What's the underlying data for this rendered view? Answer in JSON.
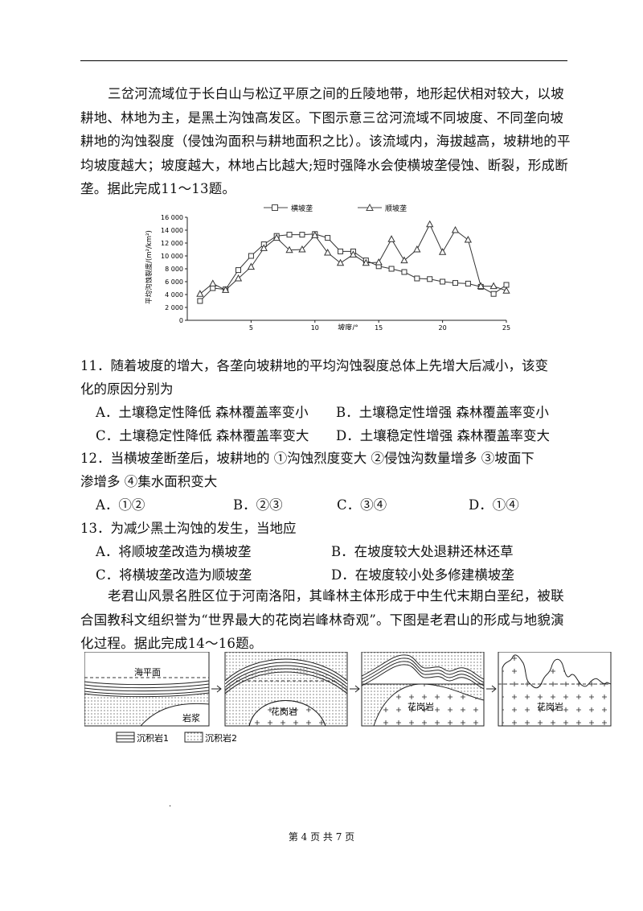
{
  "intro1": "三岔河流域位于长白山与松辽平原之间的丘陵地带，地形起伏相对较大，以坡耕地、林地为主，是黑土沟蚀高发区。下图示意三岔河流域不同坡度、不同垄向坡耕地的沟蚀裂度（侵蚀沟面积与耕地面积之比）。该流域内，海拔越高，坡耕地的平均坡度越大；坡度越大，林地占比越大;短时强降水会使横坡垄侵蚀、断裂，形成断垄。据此完成11～13题。",
  "chart_data": {
    "type": "line",
    "xlabel": "坡度/°",
    "ylabel": "平均沟蚀裂度/(m²/km²)",
    "xlim": [
      0,
      25
    ],
    "ylim": [
      0,
      16000
    ],
    "xticks": [
      "5",
      "10",
      "15",
      "20",
      "25"
    ],
    "yticks": [
      "0",
      "2 000",
      "4 000",
      "6 000",
      "8 000",
      "10 000",
      "12 000",
      "14 000",
      "16 000"
    ],
    "legend_position": "top",
    "series": [
      {
        "name": "横坡垄",
        "marker": "square",
        "x": [
          1,
          2,
          3,
          4,
          5,
          6,
          7,
          8,
          9,
          10,
          11,
          12,
          13,
          14,
          15,
          16,
          17,
          18,
          19,
          20,
          21,
          22,
          23,
          24,
          25
        ],
        "values": [
          3000,
          5000,
          4800,
          7800,
          10000,
          11800,
          13100,
          13300,
          13300,
          13400,
          12800,
          10700,
          10700,
          9300,
          8400,
          8000,
          7500,
          6500,
          6400,
          6000,
          5800,
          5700,
          5200,
          4100,
          5500
        ]
      },
      {
        "name": "顺坡垄",
        "marker": "triangle",
        "x": [
          1,
          2,
          3,
          4,
          5,
          6,
          7,
          8,
          9,
          10,
          11,
          12,
          13,
          14,
          15,
          16,
          17,
          18,
          19,
          20,
          21,
          22,
          23,
          24,
          25
        ],
        "values": [
          4100,
          5700,
          4700,
          6500,
          8300,
          11200,
          12800,
          10900,
          11000,
          13200,
          10500,
          8900,
          10200,
          8900,
          9000,
          12600,
          9300,
          11000,
          14900,
          10600,
          14000,
          12500,
          5300,
          5300,
          4600
        ]
      }
    ]
  },
  "q11": {
    "stem1": "11．随着坡度的增大，各垄向坡耕地的平均沟蚀裂度总体上先增大后减小，该变",
    "stem2": "化的原因分别为",
    "A": "A．土壤稳定性降低  森林覆盖率变小",
    "B": "B．土壤稳定性增强  森林覆盖率变小",
    "C": "C．土壤稳定性降低  森林覆盖率变大",
    "D": "D．土壤稳定性增强  森林覆盖率变大"
  },
  "q12": {
    "stem1": "12．当横坡垄断垄后，坡耕地的  ①沟蚀烈度变大 ②侵蚀沟数量增多 ③坡面下",
    "stem2": "渗增多 ④集水面积变大",
    "A": "A．①②",
    "B": "B．②③",
    "C": "C．③④",
    "D": "D．①④"
  },
  "q13": {
    "stem": "13．为减少黑土沟蚀的发生，当地应",
    "A": "A．将顺坡垄改造为横坡垄",
    "B": "B．在坡度较大处退耕还林还草",
    "C": "C．将横坡垄改造为顺坡垄",
    "D": "D．在坡度较小处多修建横坡垄"
  },
  "intro2": "老君山风景名胜区位于河南洛阳，其峰林主体形成于中生代末期白垩纪，被联合国教科文组织誉为“世界最大的花岗岩峰林奇观”。下图是老君山的形成与地貌演化过程。据此完成14～16题。",
  "diagram": {
    "sea_level": "海平面",
    "magma": "岩浆",
    "granite": "花岗岩",
    "legend1": "沉积岩1",
    "legend2": "沉积岩2"
  },
  "footer": "第 4 页 共 7 页"
}
